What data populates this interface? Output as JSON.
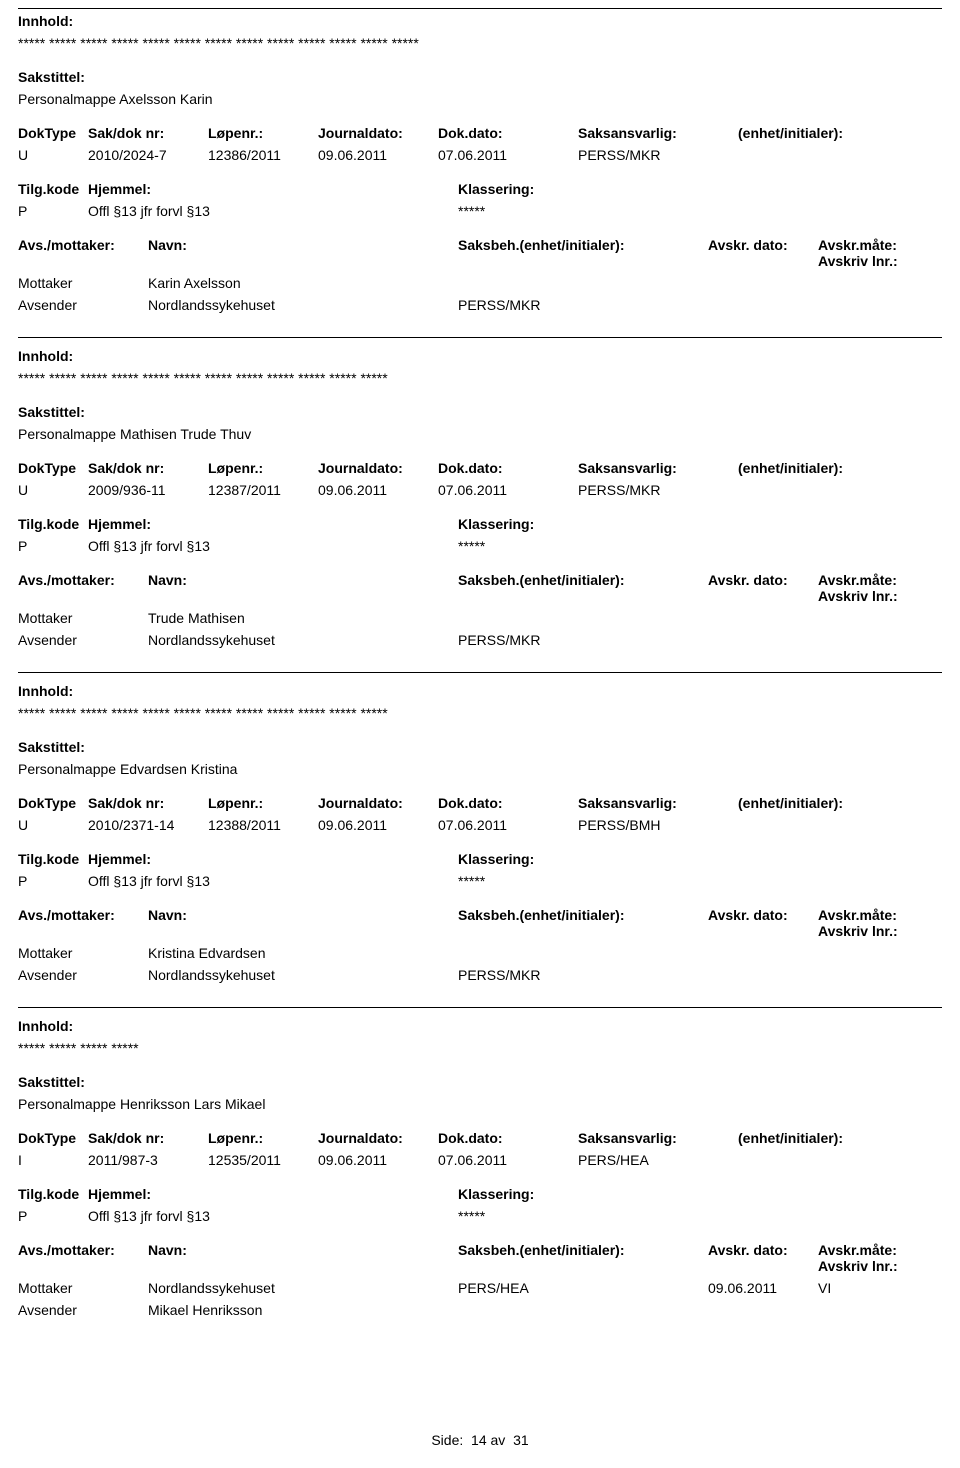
{
  "labels": {
    "innhold": "Innhold:",
    "sakstittel": "Sakstittel:",
    "doktype": "DokType",
    "saknr": "Sak/dok nr:",
    "lopenr": "Løpenr.:",
    "jdato": "Journaldato:",
    "ddato": "Dok.dato:",
    "saksans": "Saksansvarlig:",
    "enhet": "(enhet/initialer):",
    "tilgkode": "Tilg.kode",
    "hjemmel": "Hjemmel:",
    "klassering": "Klassering:",
    "avsmottaker": "Avs./mottaker:",
    "navn": "Navn:",
    "saksbeh": "Saksbeh.(enhet/initialer):",
    "avskrdato": "Avskr. dato:",
    "avskrmate": "Avskr.måte:",
    "avskrivlnr": "Avskriv lnr.:",
    "mottaker": "Mottaker",
    "avsender": "Avsender"
  },
  "records": [
    {
      "innhold": "***** ***** ***** ***** ***** ***** ***** ***** ***** *****  ***** ***** *****",
      "sakstittel": "Personalmappe Axelsson Karin",
      "doktype": "U",
      "saknr": "2010/2024-7",
      "lopenr": "12386/2011",
      "jdato": "09.06.2011",
      "ddato": "07.06.2011",
      "saksans": "PERSS/MKR",
      "tilg": "P",
      "hjemmel": "Offl §13 jfr forvl §13",
      "klassval": "*****",
      "mottaker_name": "Karin Axelsson",
      "mottaker_saksbeh": "",
      "mottaker_avskrd": "",
      "mottaker_avskrm": "",
      "avsender_name": "Nordlandssykehuset",
      "avsender_saksbeh": "PERSS/MKR"
    },
    {
      "innhold": "***** ***** ***** ***** ***** ***** ***** *****  ***** ***** *****  *****",
      "sakstittel": "Personalmappe Mathisen Trude Thuv",
      "doktype": "U",
      "saknr": "2009/936-11",
      "lopenr": "12387/2011",
      "jdato": "09.06.2011",
      "ddato": "07.06.2011",
      "saksans": "PERSS/MKR",
      "tilg": "P",
      "hjemmel": "Offl §13 jfr forvl §13",
      "klassval": "*****",
      "mottaker_name": "Trude Mathisen",
      "mottaker_saksbeh": "",
      "mottaker_avskrd": "",
      "mottaker_avskrm": "",
      "avsender_name": "Nordlandssykehuset",
      "avsender_saksbeh": "PERSS/MKR"
    },
    {
      "innhold": "***** ***** ***** ***** ***** ***** ***** ***** ***** ***** ***** *****",
      "sakstittel": "Personalmappe Edvardsen Kristina",
      "doktype": "U",
      "saknr": "2010/2371-14",
      "lopenr": "12388/2011",
      "jdato": "09.06.2011",
      "ddato": "07.06.2011",
      "saksans": "PERSS/BMH",
      "tilg": "P",
      "hjemmel": "Offl §13 jfr forvl §13",
      "klassval": "*****",
      "mottaker_name": "Kristina Edvardsen",
      "mottaker_saksbeh": "",
      "mottaker_avskrd": "",
      "mottaker_avskrm": "",
      "avsender_name": "Nordlandssykehuset",
      "avsender_saksbeh": "PERSS/MKR"
    },
    {
      "innhold": "***** ***** ***** *****",
      "sakstittel": "Personalmappe Henriksson Lars Mikael",
      "doktype": "I",
      "saknr": "2011/987-3",
      "lopenr": "12535/2011",
      "jdato": "09.06.2011",
      "ddato": "07.06.2011",
      "saksans": "PERS/HEA",
      "tilg": "P",
      "hjemmel": "Offl §13 jfr forvl §13",
      "klassval": "*****",
      "mottaker_name": "Nordlandssykehuset",
      "mottaker_saksbeh": "PERS/HEA",
      "mottaker_avskrd": "09.06.2011",
      "mottaker_avskrm": "VI",
      "avsender_name": "Mikael Henriksson",
      "avsender_saksbeh": ""
    }
  ],
  "footer": {
    "side": "Side:",
    "page": "14",
    "av": "av",
    "total": "31"
  }
}
